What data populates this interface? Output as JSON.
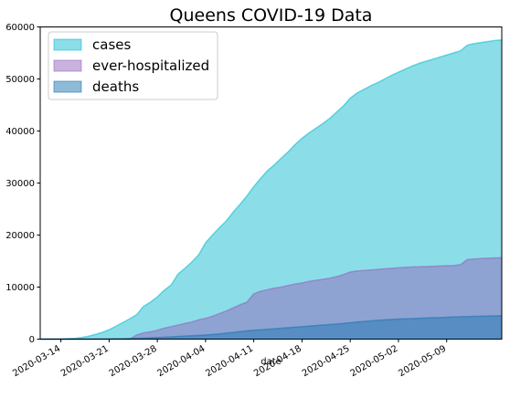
{
  "chart_data": {
    "type": "area",
    "title": "Queens COVID-19 Data",
    "xlabel": "date",
    "ylabel": "",
    "x_start": "2020-03-11",
    "x_end": "2020-05-17",
    "ylim": [
      0,
      60000
    ],
    "yticks": [
      0,
      10000,
      20000,
      30000,
      40000,
      50000,
      60000
    ],
    "yticklabels": [
      "0",
      "10000",
      "20000",
      "30000",
      "40000",
      "50000",
      "60000"
    ],
    "xticks": [
      "2020-03-14",
      "2020-03-21",
      "2020-03-28",
      "2020-04-04",
      "2020-04-11",
      "2020-04-18",
      "2020-04-25",
      "2020-05-02",
      "2020-05-09"
    ],
    "grid": false,
    "legend_position": "top-left",
    "series": [
      {
        "name": "cases",
        "color": "#17becf",
        "points": [
          [
            "2020-03-11",
            0
          ],
          [
            "2020-03-14",
            50
          ],
          [
            "2020-03-16",
            150
          ],
          [
            "2020-03-17",
            300
          ],
          [
            "2020-03-18",
            550
          ],
          [
            "2020-03-19",
            900
          ],
          [
            "2020-03-20",
            1300
          ],
          [
            "2020-03-21",
            1800
          ],
          [
            "2020-03-22",
            2500
          ],
          [
            "2020-03-23",
            3200
          ],
          [
            "2020-03-24",
            3900
          ],
          [
            "2020-03-25",
            4700
          ],
          [
            "2020-03-26",
            6300
          ],
          [
            "2020-03-27",
            7100
          ],
          [
            "2020-03-28",
            8100
          ],
          [
            "2020-03-29",
            9400
          ],
          [
            "2020-03-30",
            10400
          ],
          [
            "2020-03-31",
            12500
          ],
          [
            "2020-04-01",
            13600
          ],
          [
            "2020-04-02",
            14800
          ],
          [
            "2020-04-03",
            16200
          ],
          [
            "2020-04-04",
            18500
          ],
          [
            "2020-04-05",
            20000
          ],
          [
            "2020-04-06",
            21400
          ],
          [
            "2020-04-07",
            22700
          ],
          [
            "2020-04-08",
            24400
          ],
          [
            "2020-04-09",
            25900
          ],
          [
            "2020-04-10",
            27500
          ],
          [
            "2020-04-11",
            29300
          ],
          [
            "2020-04-12",
            30900
          ],
          [
            "2020-04-13",
            32400
          ],
          [
            "2020-04-14",
            33500
          ],
          [
            "2020-04-15",
            34800
          ],
          [
            "2020-04-16",
            36000
          ],
          [
            "2020-04-17",
            37400
          ],
          [
            "2020-04-18",
            38600
          ],
          [
            "2020-04-19",
            39600
          ],
          [
            "2020-04-20",
            40500
          ],
          [
            "2020-04-21",
            41400
          ],
          [
            "2020-04-22",
            42400
          ],
          [
            "2020-04-23",
            43600
          ],
          [
            "2020-04-24",
            44800
          ],
          [
            "2020-04-25",
            46300
          ],
          [
            "2020-04-26",
            47300
          ],
          [
            "2020-04-27",
            48000
          ],
          [
            "2020-04-28",
            48700
          ],
          [
            "2020-04-29",
            49300
          ],
          [
            "2020-04-30",
            50000
          ],
          [
            "2020-05-01",
            50700
          ],
          [
            "2020-05-02",
            51300
          ],
          [
            "2020-05-03",
            51900
          ],
          [
            "2020-05-04",
            52500
          ],
          [
            "2020-05-05",
            53000
          ],
          [
            "2020-05-06",
            53400
          ],
          [
            "2020-05-07",
            53800
          ],
          [
            "2020-05-08",
            54200
          ],
          [
            "2020-05-09",
            54600
          ],
          [
            "2020-05-10",
            55000
          ],
          [
            "2020-05-11",
            55400
          ],
          [
            "2020-05-12",
            56500
          ],
          [
            "2020-05-13",
            56800
          ],
          [
            "2020-05-14",
            57000
          ],
          [
            "2020-05-15",
            57200
          ],
          [
            "2020-05-16",
            57400
          ],
          [
            "2020-05-17",
            57500
          ]
        ]
      },
      {
        "name": "ever-hospitalized",
        "color": "#9467bd",
        "points": [
          [
            "2020-03-11",
            0
          ],
          [
            "2020-03-24",
            0
          ],
          [
            "2020-03-25",
            800
          ],
          [
            "2020-03-26",
            1200
          ],
          [
            "2020-03-27",
            1400
          ],
          [
            "2020-03-28",
            1700
          ],
          [
            "2020-03-29",
            2100
          ],
          [
            "2020-03-30",
            2400
          ],
          [
            "2020-03-31",
            2700
          ],
          [
            "2020-04-01",
            3000
          ],
          [
            "2020-04-02",
            3300
          ],
          [
            "2020-04-03",
            3700
          ],
          [
            "2020-04-04",
            4000
          ],
          [
            "2020-04-05",
            4400
          ],
          [
            "2020-04-06",
            4900
          ],
          [
            "2020-04-07",
            5400
          ],
          [
            "2020-04-08",
            6000
          ],
          [
            "2020-04-09",
            6600
          ],
          [
            "2020-04-10",
            7100
          ],
          [
            "2020-04-11",
            8700
          ],
          [
            "2020-04-12",
            9200
          ],
          [
            "2020-04-13",
            9500
          ],
          [
            "2020-04-14",
            9800
          ],
          [
            "2020-04-15",
            10000
          ],
          [
            "2020-04-16",
            10300
          ],
          [
            "2020-04-17",
            10600
          ],
          [
            "2020-04-18",
            10800
          ],
          [
            "2020-04-19",
            11100
          ],
          [
            "2020-04-20",
            11300
          ],
          [
            "2020-04-21",
            11500
          ],
          [
            "2020-04-22",
            11700
          ],
          [
            "2020-04-23",
            12000
          ],
          [
            "2020-04-24",
            12400
          ],
          [
            "2020-04-25",
            12900
          ],
          [
            "2020-04-26",
            13100
          ],
          [
            "2020-04-27",
            13200
          ],
          [
            "2020-04-28",
            13300
          ],
          [
            "2020-04-29",
            13400
          ],
          [
            "2020-04-30",
            13500
          ],
          [
            "2020-05-01",
            13600
          ],
          [
            "2020-05-02",
            13700
          ],
          [
            "2020-05-03",
            13800
          ],
          [
            "2020-05-04",
            13850
          ],
          [
            "2020-05-05",
            13900
          ],
          [
            "2020-05-06",
            13950
          ],
          [
            "2020-05-07",
            14000
          ],
          [
            "2020-05-08",
            14050
          ],
          [
            "2020-05-09",
            14100
          ],
          [
            "2020-05-10",
            14150
          ],
          [
            "2020-05-11",
            14300
          ],
          [
            "2020-05-12",
            15300
          ],
          [
            "2020-05-13",
            15400
          ],
          [
            "2020-05-14",
            15500
          ],
          [
            "2020-05-15",
            15550
          ],
          [
            "2020-05-16",
            15600
          ],
          [
            "2020-05-17",
            15650
          ]
        ]
      },
      {
        "name": "deaths",
        "color": "#1f77b4",
        "points": [
          [
            "2020-03-11",
            0
          ],
          [
            "2020-03-17",
            0
          ],
          [
            "2020-03-21",
            50
          ],
          [
            "2020-03-25",
            150
          ],
          [
            "2020-03-28",
            300
          ],
          [
            "2020-03-31",
            500
          ],
          [
            "2020-04-02",
            650
          ],
          [
            "2020-04-04",
            800
          ],
          [
            "2020-04-06",
            1000
          ],
          [
            "2020-04-08",
            1300
          ],
          [
            "2020-04-10",
            1600
          ],
          [
            "2020-04-12",
            1800
          ],
          [
            "2020-04-14",
            2000
          ],
          [
            "2020-04-16",
            2200
          ],
          [
            "2020-04-18",
            2400
          ],
          [
            "2020-04-20",
            2600
          ],
          [
            "2020-04-22",
            2800
          ],
          [
            "2020-04-24",
            3000
          ],
          [
            "2020-04-26",
            3300
          ],
          [
            "2020-04-28",
            3500
          ],
          [
            "2020-04-30",
            3700
          ],
          [
            "2020-05-02",
            3850
          ],
          [
            "2020-05-04",
            3950
          ],
          [
            "2020-05-06",
            4050
          ],
          [
            "2020-05-08",
            4150
          ],
          [
            "2020-05-10",
            4250
          ],
          [
            "2020-05-12",
            4350
          ],
          [
            "2020-05-14",
            4400
          ],
          [
            "2020-05-17",
            4500
          ]
        ]
      }
    ]
  }
}
